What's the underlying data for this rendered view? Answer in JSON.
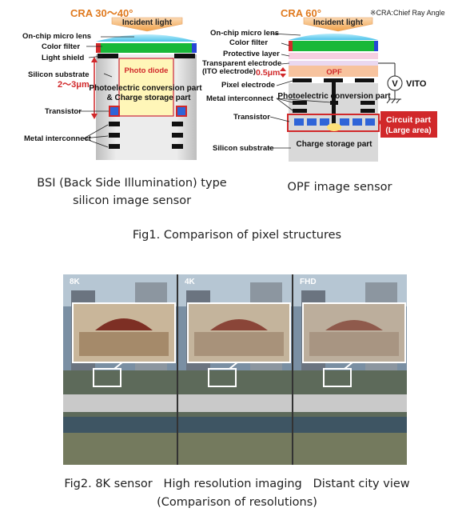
{
  "fig1": {
    "cra_note": "※CRA:Chief Ray Angle",
    "bsi": {
      "cra": "CRA 30～40°",
      "incident": "Incident light",
      "labels": {
        "micro_lens": "On-chip micro lens",
        "color_filter": "Color filter",
        "light_shield": "Light shield",
        "silicon_substrate": "Silicon substrate",
        "thickness": "2～3μm",
        "transistor": "Transistor",
        "metal": "Metal interconnect",
        "photo_diode": "Photo diode",
        "pc_part_1": "Photoelectric conversion part",
        "pc_part_2": "& Charge storage part"
      },
      "caption_1": "BSI (Back Side Illumination) type",
      "caption_2": "silicon image sensor"
    },
    "opf": {
      "cra": "CRA 60°",
      "incident": "Incident light",
      "labels": {
        "micro_lens": "On-chip micro lens",
        "color_filter": "Color filter",
        "protective": "Protective layer",
        "transparent_1": "Transparent electrode",
        "transparent_2": "(ITO electrode)",
        "thickness": "0.5μm",
        "opf": "OPF",
        "pixel_electrode": "Pixel electrode",
        "metal": "Metal interconnect",
        "pc_part": "Photoelectric conversion part",
        "transistor": "Transistor",
        "circuit_1": "Circuit part",
        "circuit_2": "(Large area)",
        "charge": "Charge storage part",
        "silicon": "Silicon substrate",
        "volt": "V",
        "vito": "VITO"
      },
      "caption": "OPF image sensor"
    },
    "title": "Fig1. Comparison of pixel structures"
  },
  "fig2": {
    "panels": [
      "8K",
      "4K",
      "FHD"
    ],
    "caption_1": "Fig2. 8K sensor   High resolution imaging   Distant city view",
    "caption_2": "(Comparison of resolutions)"
  },
  "colors": {
    "cra_orange": "#e07a1f",
    "lens_cyan": "#6fd0ee",
    "filter_green": "#18b838",
    "highlight_red": "#d1282a",
    "photodiode_yellow": "#fff6b8",
    "substrate_gray": "#d9d9d9",
    "pixel_blue": "#2f64d8"
  }
}
